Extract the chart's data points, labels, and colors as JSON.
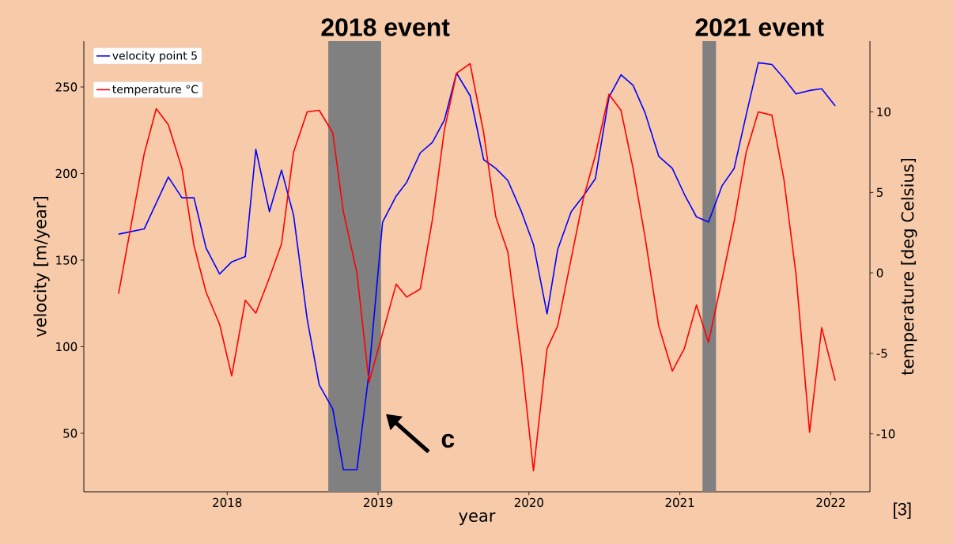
{
  "chart_data": {
    "type": "line",
    "xlabel": "year",
    "ylabel": "velocity [m/year]",
    "y2label": "temperature [deg Celsius]",
    "xlim": [
      2017.05,
      2022.26
    ],
    "ylim": [
      16.2,
      276.5
    ],
    "y2lim": [
      -13.6,
      14.4
    ],
    "xticks": [
      2018,
      2019,
      2020,
      2021,
      2022
    ],
    "yticks": [
      50,
      100,
      150,
      200,
      250
    ],
    "y2ticks": [
      -10,
      -5,
      0,
      5,
      10
    ],
    "legend": "top left",
    "series": [
      {
        "name": "velocity point 5",
        "color": "#0000ff",
        "x": [
          2017.28,
          2017.45,
          2017.61,
          2017.7,
          2017.78,
          2017.86,
          2017.95,
          2018.03,
          2018.12,
          2018.19,
          2018.28,
          2018.36,
          2018.44,
          2018.53,
          2018.61,
          2018.7,
          2018.77,
          2018.86,
          2018.94,
          2019.03,
          2019.12,
          2019.19,
          2019.28,
          2019.36,
          2019.44,
          2019.52,
          2019.61,
          2019.7,
          2019.78,
          2019.86,
          2019.95,
          2020.03,
          2020.12,
          2020.19,
          2020.28,
          2020.36,
          2020.44,
          2020.53,
          2020.61,
          2020.69,
          2020.77,
          2020.86,
          2020.95,
          2021.03,
          2021.11,
          2021.19,
          2021.28,
          2021.36,
          2021.44,
          2021.52,
          2021.61,
          2021.69,
          2021.77,
          2021.86,
          2021.94,
          2022.03
        ],
        "values": [
          165,
          168,
          198,
          186,
          186,
          157,
          142,
          149,
          152,
          214,
          178,
          202,
          176,
          116,
          78,
          64,
          29,
          29,
          85,
          172,
          187,
          195,
          212,
          218,
          231,
          258,
          245,
          208,
          203,
          196,
          178,
          159,
          119,
          156,
          178,
          187,
          197,
          244,
          257,
          251,
          235,
          210,
          203,
          188,
          175,
          172,
          193,
          203,
          234,
          264,
          263,
          255,
          246,
          248,
          249,
          239
        ]
      },
      {
        "name": "temperature °C",
        "color": "#ff0000",
        "axis": "y2",
        "x": [
          2017.28,
          2017.45,
          2017.53,
          2017.61,
          2017.7,
          2017.78,
          2017.86,
          2017.95,
          2018.03,
          2018.12,
          2018.19,
          2018.28,
          2018.36,
          2018.44,
          2018.53,
          2018.61,
          2018.7,
          2018.77,
          2018.86,
          2018.94,
          2019.12,
          2019.19,
          2019.28,
          2019.36,
          2019.44,
          2019.52,
          2019.61,
          2019.7,
          2019.78,
          2019.86,
          2019.95,
          2020.03,
          2020.12,
          2020.19,
          2020.28,
          2020.36,
          2020.44,
          2020.53,
          2020.61,
          2020.69,
          2020.77,
          2020.86,
          2020.95,
          2021.03,
          2021.11,
          2021.19,
          2021.28,
          2021.36,
          2021.44,
          2021.52,
          2021.61,
          2021.69,
          2021.77,
          2021.86,
          2021.94,
          2022.03
        ],
        "values": [
          -1.3,
          7.4,
          10.2,
          9.2,
          6.5,
          1.7,
          -1.2,
          -3.2,
          -6.4,
          -1.7,
          -2.5,
          -0.3,
          1.8,
          7.5,
          10.0,
          10.1,
          8.7,
          3.8,
          0.0,
          -6.8,
          -0.7,
          -1.5,
          -1.0,
          3.3,
          8.9,
          12.4,
          13.0,
          8.7,
          3.5,
          1.3,
          -5.3,
          -12.3,
          -4.7,
          -3.3,
          0.9,
          4.6,
          7.3,
          11.1,
          10.1,
          6.5,
          2.2,
          -3.3,
          -6.1,
          -4.7,
          -2.0,
          -4.3,
          -0.4,
          3.2,
          7.5,
          10.0,
          9.8,
          5.8,
          -0.1,
          -9.9,
          -3.4,
          -6.7
        ]
      }
    ],
    "bands": [
      {
        "axis": "x",
        "from": 2018.67,
        "to": 2019.02,
        "label": "2018 event",
        "color": "#808080"
      },
      {
        "axis": "x",
        "from": 2021.15,
        "to": 2021.24,
        "label": "2021 event",
        "color": "#808080"
      }
    ],
    "annotations": [
      {
        "text": "c",
        "x": 2019.02,
        "y": 63
      },
      "[3]"
    ]
  }
}
